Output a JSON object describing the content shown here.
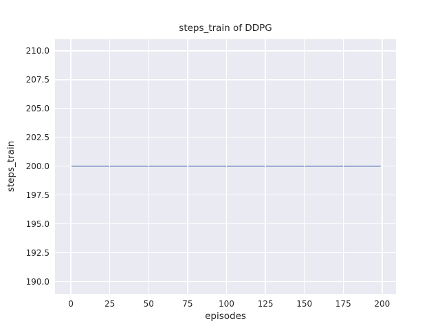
{
  "chart_data": {
    "type": "line",
    "title": "steps_train of DDPG",
    "xlabel": "episodes",
    "ylabel": "steps_train",
    "xlim": [
      -10.2,
      208.9
    ],
    "ylim": [
      188.9,
      211.0
    ],
    "xticks": [
      "0",
      "25",
      "50",
      "75",
      "100",
      "125",
      "150",
      "175",
      "200"
    ],
    "yticks": [
      "190.0",
      "192.5",
      "195.0",
      "197.5",
      "200.0",
      "202.5",
      "205.0",
      "207.5",
      "210.0"
    ],
    "grid": true,
    "legend": "none",
    "series": [
      {
        "name": "steps_train",
        "constant_value": 200,
        "x": [
          0,
          199
        ],
        "y": [
          200,
          200
        ],
        "color": "#4c72b0"
      }
    ],
    "colors": {
      "plot_background": "#eaeaf2",
      "gridline": "#ffffff",
      "text": "#262626",
      "figure_background": "#ffffff"
    }
  }
}
